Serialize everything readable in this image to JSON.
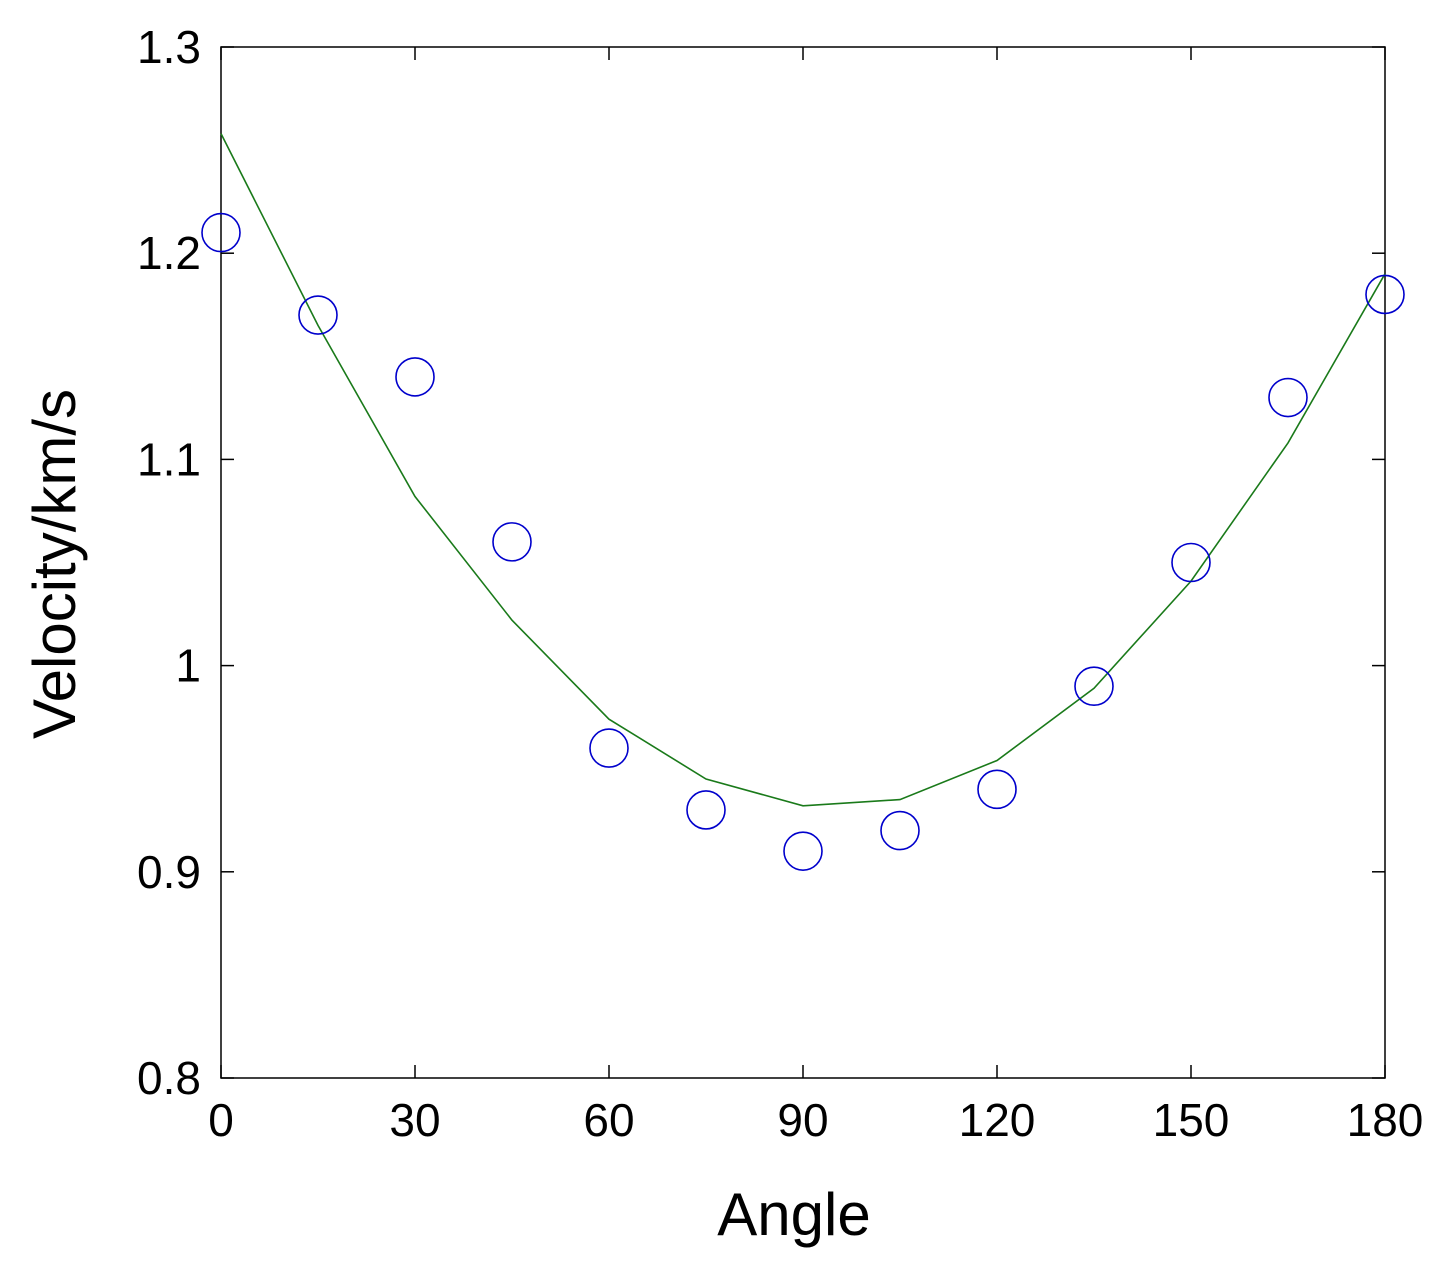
{
  "chart_data": {
    "type": "scatter",
    "xlabel": "Angle",
    "ylabel": "Velocity/km/s",
    "xlim": [
      0,
      180
    ],
    "ylim": [
      0.8,
      1.3
    ],
    "xticks": [
      0,
      30,
      60,
      90,
      120,
      150,
      180
    ],
    "xtick_labels": [
      "0",
      "30",
      "60",
      "90",
      "120",
      "150",
      "180"
    ],
    "yticks": [
      0.8,
      0.9,
      1.0,
      1.1,
      1.2,
      1.3
    ],
    "ytick_labels": [
      "0.8",
      "0.9",
      "1",
      "1.1",
      "1.2",
      "1.3"
    ],
    "grid": false,
    "series": [
      {
        "kind": "scatter",
        "marker": "open-circle",
        "color": "#0000cc",
        "x": [
          0,
          15,
          30,
          45,
          60,
          75,
          90,
          105,
          120,
          135,
          150,
          165,
          180
        ],
        "y": [
          1.21,
          1.17,
          1.14,
          1.06,
          0.96,
          0.93,
          0.91,
          0.92,
          0.94,
          0.99,
          1.05,
          1.13,
          1.18
        ]
      },
      {
        "kind": "line",
        "color": "#1a7a1a",
        "x": [
          0,
          15,
          30,
          45,
          60,
          75,
          90,
          105,
          120,
          135,
          150,
          165,
          180
        ],
        "y": [
          1.258,
          1.165,
          1.082,
          1.022,
          0.974,
          0.945,
          0.932,
          0.935,
          0.954,
          0.989,
          1.041,
          1.108,
          1.19
        ]
      }
    ]
  }
}
